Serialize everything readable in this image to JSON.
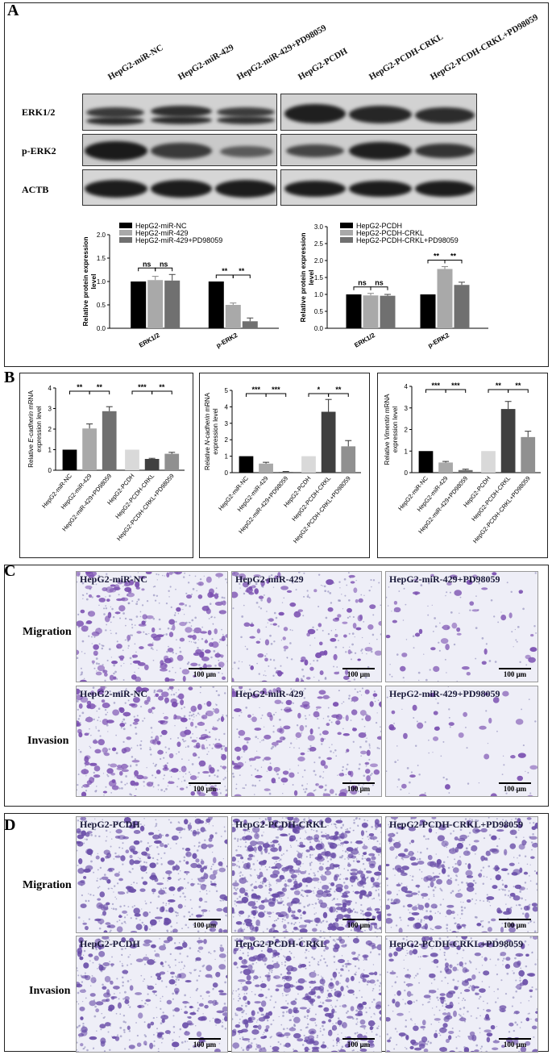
{
  "panelA": {
    "label": "A",
    "lanes_left": [
      "HepG2-miR-NC",
      "HepG2-miR-429",
      "HepG2-miR-429+PD98059"
    ],
    "lanes_right": [
      "HepG2-PCDH",
      "HepG2-PCDH-CRKL",
      "HepG2-PCDH-CRKL+PD98059"
    ],
    "blot_rows": [
      "ERK1/2",
      "p-ERK2",
      "ACTB"
    ]
  },
  "panelB": {
    "label": "B"
  },
  "panelC": {
    "label": "C",
    "row_labels": [
      "Migration",
      "Invasion"
    ],
    "images": [
      [
        "HepG2-miR-NC",
        "HepG2-miR-429",
        "HepG2-miR-429+PD98059"
      ],
      [
        "HepG2-miR-NC",
        "HepG2-miR-429",
        "HepG2-miR-429+PD98059"
      ]
    ],
    "scale": "100 μm"
  },
  "panelD": {
    "label": "D",
    "row_labels": [
      "Migration",
      "Invasion"
    ],
    "images": [
      [
        "HepG2-PCDH",
        "HepG2-PCDH-CRKL",
        "HepG2-PCDH-CRKL+PD98059"
      ],
      [
        "HepG2-PCDH",
        "HepG2-PCDH-CRKL",
        "HepG2-PCDH-CRKL+PD98059"
      ]
    ],
    "scale": "100 μm"
  },
  "chart_data": [
    {
      "type": "bar",
      "categories": [
        "ERK1/2",
        "p-ERK2"
      ],
      "series": [
        {
          "name": "HepG2-miR-NC",
          "values": [
            1.0,
            1.0
          ],
          "errors": [
            0,
            0
          ],
          "color": "#000000"
        },
        {
          "name": "HepG2-miR-429",
          "values": [
            1.03,
            0.5
          ],
          "errors": [
            0.08,
            0.04
          ],
          "color": "#a9a9a9"
        },
        {
          "name": "HepG2-miR-429+PD98059",
          "values": [
            1.02,
            0.15
          ],
          "errors": [
            0.13,
            0.07
          ],
          "color": "#707070"
        }
      ],
      "ylabel": "Relative protein expression level",
      "ylim": [
        0,
        2.0
      ],
      "yticks": [
        "0.0",
        "0.5",
        "1.0",
        "1.5",
        "2.0"
      ],
      "legend_position": "top-left",
      "sig": [
        [
          "ns",
          "ns"
        ],
        [
          "**",
          "**"
        ]
      ]
    },
    {
      "type": "bar",
      "categories": [
        "ERK1/2",
        "p-ERK2"
      ],
      "series": [
        {
          "name": "HepG2-PCDH",
          "values": [
            1.0,
            1.0
          ],
          "errors": [
            0,
            0
          ],
          "color": "#000000"
        },
        {
          "name": "HepG2-PCDH-CRKL",
          "values": [
            0.97,
            1.75
          ],
          "errors": [
            0.06,
            0.07
          ],
          "color": "#a9a9a9"
        },
        {
          "name": "HepG2-PCDH-CRKL+PD98059",
          "values": [
            0.96,
            1.28
          ],
          "errors": [
            0.04,
            0.08
          ],
          "color": "#707070"
        }
      ],
      "ylabel": "Relative protein expression level",
      "ylim": [
        0,
        3.0
      ],
      "yticks": [
        "0.0",
        "0.5",
        "1.0",
        "1.5",
        "2.0",
        "2.5",
        "3.0"
      ],
      "legend_position": "top-left",
      "sig": [
        [
          "ns",
          "ns"
        ],
        [
          "**",
          "**"
        ]
      ]
    },
    {
      "type": "bar",
      "categories": [
        "HepG2-miR-NC",
        "HepG2-miR-429",
        "HepG2-miR-429+PD98059",
        "HepG2-PCDH",
        "HepG2-PCDH-CRKL",
        "HepG2-PCDH-CRKL+PD98059"
      ],
      "values": [
        1.0,
        2.03,
        2.87,
        1.0,
        0.55,
        0.8
      ],
      "errors": [
        0,
        0.22,
        0.22,
        0,
        0.03,
        0.07
      ],
      "colors": [
        "#000000",
        "#a9a9a9",
        "#707070",
        "#d9d9d9",
        "#404040",
        "#909090"
      ],
      "ylabel_parts": [
        "Relative ",
        "E-cadherin",
        " mRNA",
        "expression level"
      ],
      "ylim": [
        0,
        4
      ],
      "yticks": [
        "0",
        "1",
        "2",
        "3",
        "4"
      ],
      "sig": [
        "**",
        "**",
        "***",
        "**"
      ]
    },
    {
      "type": "bar",
      "categories": [
        "HepG2-miR-NC",
        "HepG2-miR-429",
        "HepG2-miR-429+PD98059",
        "HepG2-PCDH",
        "HepG2-PCDH-CRKL",
        "HepG2-PCDH-CRKL+PD98059"
      ],
      "values": [
        1.0,
        0.55,
        0.05,
        1.0,
        3.7,
        1.6
      ],
      "errors": [
        0,
        0.08,
        0.02,
        0,
        0.75,
        0.35
      ],
      "colors": [
        "#000000",
        "#a9a9a9",
        "#707070",
        "#d9d9d9",
        "#404040",
        "#909090"
      ],
      "ylabel_parts": [
        "Relative ",
        "N-cadherin",
        " mRNA",
        "expression level"
      ],
      "ylim": [
        0,
        5
      ],
      "yticks": [
        "0",
        "1",
        "2",
        "3",
        "4",
        "5"
      ],
      "sig": [
        "***",
        "***",
        "*",
        "**"
      ]
    },
    {
      "type": "bar",
      "categories": [
        "HepG2-miR-NC",
        "HepG2-miR-429",
        "HepG2-miR-429+PD98059",
        "HepG2-PCDH",
        "HepG2-PCDH-CRKL",
        "HepG2-PCDH-CRKL+PD98059"
      ],
      "values": [
        1.0,
        0.47,
        0.12,
        1.0,
        2.95,
        1.65
      ],
      "errors": [
        0,
        0.05,
        0.04,
        0,
        0.35,
        0.27
      ],
      "colors": [
        "#000000",
        "#a9a9a9",
        "#707070",
        "#d9d9d9",
        "#404040",
        "#909090"
      ],
      "ylabel_parts": [
        "Relative ",
        "Vimentin",
        " mRNA",
        "expression level"
      ],
      "ylim": [
        0,
        4
      ],
      "yticks": [
        "0",
        "1",
        "2",
        "3",
        "4"
      ],
      "sig": [
        "***",
        "***",
        "**",
        "**"
      ]
    }
  ]
}
